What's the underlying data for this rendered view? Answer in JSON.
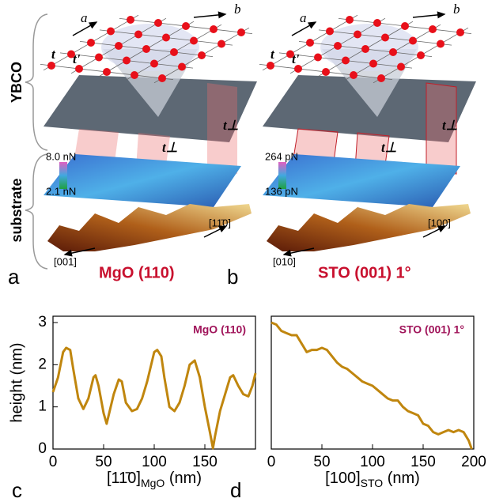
{
  "layers": [
    "YBCO",
    "substrate"
  ],
  "panels": [
    {
      "panel": "a",
      "lattice_a": "a",
      "lattice_b": "b",
      "t": "t",
      "t_prime": "t'",
      "t_perp": [
        "t⊥",
        "t⊥"
      ],
      "scale_max": "8.0 nN",
      "scale_min": "2.1 nN",
      "dir_1": "[001]",
      "dir_2": "[11̄0]",
      "substrate_name": "MgO (110)"
    },
    {
      "panel": "b",
      "lattice_a": "a",
      "lattice_b": "b",
      "t": "t",
      "t_prime": "t'",
      "t_perp": [
        "t⊥",
        "t⊥"
      ],
      "scale_max": "264 pN",
      "scale_min": "136 pN",
      "dir_1": "[010]",
      "dir_2": "[100]",
      "substrate_name": "STO (001) 1°"
    }
  ],
  "chart_data": [
    {
      "type": "line",
      "panel": "c",
      "annotation": "MgO (110)",
      "ylabel": "height (nm)",
      "xlabel": [
        "[11̄0]",
        "MgO",
        " (nm)"
      ],
      "color": "#c0860e",
      "xlim": [
        0,
        200
      ],
      "xticks": [
        0,
        50,
        100,
        150
      ],
      "ylim": [
        0,
        3.15
      ],
      "yticks": [
        0,
        1,
        2,
        3
      ],
      "x": [
        0,
        5,
        10,
        13,
        17,
        20,
        25,
        30,
        35,
        40,
        42,
        45,
        50,
        53,
        56,
        60,
        65,
        68,
        72,
        78,
        83,
        88,
        93,
        100,
        103,
        107,
        110,
        115,
        120,
        125,
        130,
        135,
        140,
        145,
        150,
        155,
        158,
        160,
        165,
        170,
        175,
        178,
        183,
        188,
        193,
        197,
        200
      ],
      "values": [
        1.35,
        1.7,
        2.3,
        2.4,
        2.35,
        1.9,
        1.2,
        0.95,
        1.2,
        1.7,
        1.75,
        1.5,
        0.85,
        0.6,
        0.9,
        1.3,
        1.65,
        1.6,
        1.1,
        0.9,
        0.95,
        1.2,
        1.6,
        2.3,
        2.35,
        2.2,
        1.7,
        1.0,
        0.9,
        1.1,
        1.5,
        2.0,
        2.1,
        1.7,
        1.0,
        0.4,
        0.02,
        0.3,
        0.9,
        1.3,
        1.7,
        1.75,
        1.5,
        1.3,
        1.25,
        1.5,
        1.8
      ]
    },
    {
      "type": "line",
      "panel": "d",
      "annotation": "STO (001) 1°",
      "xlabel": [
        "[100]",
        "STO",
        " (nm)"
      ],
      "color": "#c0860e",
      "xlim": [
        0,
        200
      ],
      "xticks": [
        0,
        50,
        100,
        150,
        200
      ],
      "ylim": [
        0,
        3.15
      ],
      "x": [
        0,
        5,
        10,
        15,
        20,
        25,
        30,
        35,
        40,
        45,
        50,
        55,
        60,
        65,
        70,
        75,
        80,
        85,
        90,
        95,
        100,
        105,
        110,
        115,
        120,
        125,
        130,
        135,
        140,
        145,
        150,
        155,
        160,
        165,
        170,
        175,
        180,
        185,
        190,
        195,
        198
      ],
      "values": [
        3.0,
        2.95,
        2.8,
        2.75,
        2.7,
        2.7,
        2.5,
        2.3,
        2.35,
        2.35,
        2.4,
        2.35,
        2.2,
        2.05,
        1.95,
        1.9,
        1.8,
        1.7,
        1.6,
        1.55,
        1.5,
        1.4,
        1.3,
        1.2,
        1.15,
        1.15,
        1.0,
        0.9,
        0.85,
        0.8,
        0.6,
        0.55,
        0.4,
        0.35,
        0.4,
        0.45,
        0.4,
        0.45,
        0.4,
        0.2,
        0.0
      ]
    }
  ]
}
